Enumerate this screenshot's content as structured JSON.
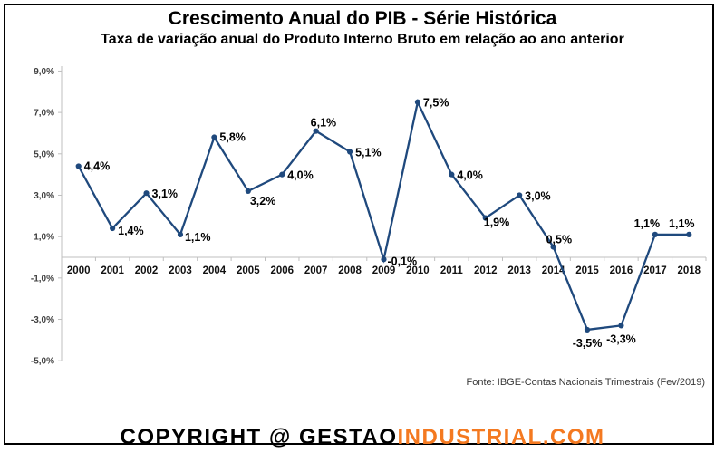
{
  "header": {
    "title": "Crescimento Anual do PIB - Série Histórica",
    "subtitle": "Taxa de variação anual do Produto Interno Bruto em relação ao ano anterior"
  },
  "chart_data": {
    "type": "line",
    "title": "Crescimento Anual do PIB - Série Histórica",
    "subtitle": "Taxa de variação anual do Produto Interno Bruto em relação ao ano anterior",
    "categories": [
      "2000",
      "2001",
      "2002",
      "2003",
      "2004",
      "2005",
      "2006",
      "2007",
      "2008",
      "2009",
      "2010",
      "2011",
      "2012",
      "2013",
      "2014",
      "2015",
      "2016",
      "2017",
      "2018"
    ],
    "values": [
      4.4,
      1.4,
      3.1,
      1.1,
      5.8,
      3.2,
      4.0,
      6.1,
      5.1,
      -0.1,
      7.5,
      4.0,
      1.9,
      3.0,
      0.5,
      -3.5,
      -3.3,
      1.1,
      1.1
    ],
    "point_labels": [
      "4,4%",
      "1,4%",
      "3,1%",
      "1,1%",
      "5,8%",
      "3,2%",
      "4,0%",
      "6,1%",
      "5,1%",
      "-0,1%",
      "7,5%",
      "4,0%",
      "1,9%",
      "3,0%",
      "0,5%",
      "-3,5%",
      "-3,3%",
      "1,1%",
      "1,1%"
    ],
    "y_ticks": [
      {
        "value": 9,
        "label": "9,0%"
      },
      {
        "value": 7,
        "label": "7,0%"
      },
      {
        "value": 5,
        "label": "5,0%"
      },
      {
        "value": 3,
        "label": "3,0%"
      },
      {
        "value": 1,
        "label": "1,0%"
      },
      {
        "value": -1,
        "label": "-1,0%"
      },
      {
        "value": -3,
        "label": "-3,0%"
      },
      {
        "value": -5,
        "label": "-5,0%"
      }
    ],
    "ylim": [
      -5,
      9
    ],
    "xlabel": "",
    "ylabel": "",
    "grid": false,
    "legend": false,
    "marker": "circle",
    "line_color": "#1F497D",
    "axis_color": "#BFBFBF"
  },
  "source": {
    "text": "Fonte: IBGE-Contas Nacionais Trimestrais (Fev/2019)"
  },
  "footer": {
    "copyright_prefix": "COPYRIGHT @ ",
    "brand_black": "GESTAO",
    "brand_orange": "INDUSTRIAL.COM",
    "brand_orange_color": "#F47920",
    "text_color": "#000000"
  }
}
